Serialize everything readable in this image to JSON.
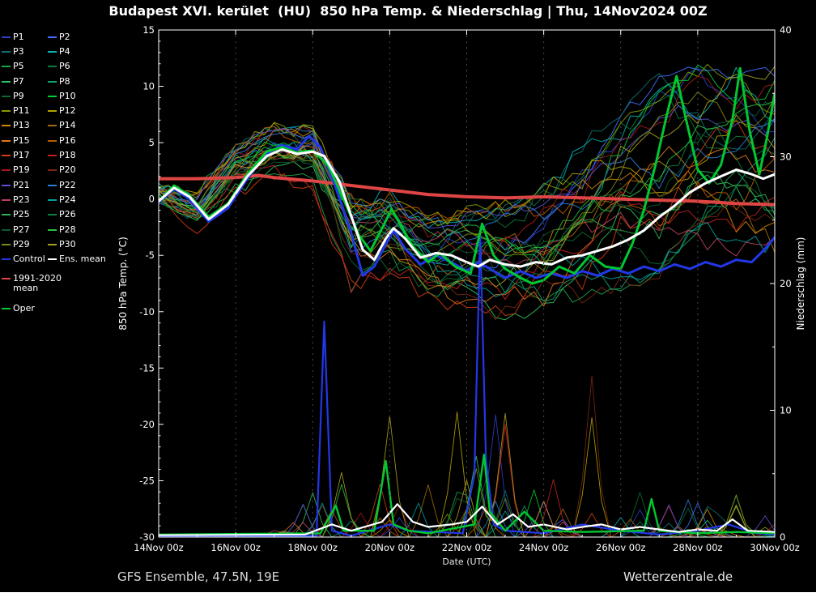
{
  "page": {
    "background": "#000000",
    "edge_strip_color": "#ffffff"
  },
  "header": {
    "title": "Budapest XVI. kerület  (HU)  850 hPa Temp. & Niederschlag | Thu, 14Nov2024 00Z"
  },
  "footer": {
    "left": "GFS Ensemble, 47.5N, 19E",
    "right": "Wetterzentrale.de"
  },
  "legend": {
    "members": [
      {
        "label": "P1",
        "color": "#2a3fd0"
      },
      {
        "label": "P2",
        "color": "#3f6fff"
      },
      {
        "label": "P3",
        "color": "#0e7070"
      },
      {
        "label": "P4",
        "color": "#00b2b2"
      },
      {
        "label": "P5",
        "color": "#19a34a"
      },
      {
        "label": "P6",
        "color": "#0c7a3c"
      },
      {
        "label": "P7",
        "color": "#2fc05f"
      },
      {
        "label": "P8",
        "color": "#0fa076"
      },
      {
        "label": "P9",
        "color": "#0b6b2f"
      },
      {
        "label": "P10",
        "color": "#00d22d"
      },
      {
        "label": "P11",
        "color": "#8a9a00"
      },
      {
        "label": "P12",
        "color": "#b5a300"
      },
      {
        "label": "P13",
        "color": "#d08a00"
      },
      {
        "label": "P14",
        "color": "#a86a10"
      },
      {
        "label": "P15",
        "color": "#e07818"
      },
      {
        "label": "P16",
        "color": "#bf5a00"
      },
      {
        "label": "P17",
        "color": "#d43d10"
      },
      {
        "label": "P18",
        "color": "#c42020"
      },
      {
        "label": "P19",
        "color": "#a81818"
      },
      {
        "label": "P20",
        "color": "#7a2810"
      },
      {
        "label": "P21",
        "color": "#5a4fd0"
      },
      {
        "label": "P22",
        "color": "#2a7fd4"
      },
      {
        "label": "P23",
        "color": "#c04060"
      },
      {
        "label": "P24",
        "color": "#00a0a0"
      },
      {
        "label": "P25",
        "color": "#30b050"
      },
      {
        "label": "P26",
        "color": "#108040"
      },
      {
        "label": "P27",
        "color": "#0a5a30"
      },
      {
        "label": "P28",
        "color": "#28c040"
      },
      {
        "label": "P29",
        "color": "#7a8a10"
      },
      {
        "label": "P30",
        "color": "#aaa020"
      }
    ],
    "control": {
      "label": "Control",
      "color": "#2238e8"
    },
    "ens_mean": {
      "label": "Ens. mean",
      "color": "#ffffff"
    },
    "climate": {
      "line1": "1991-2020",
      "line2": "mean",
      "color": "#e04545"
    },
    "oper": {
      "label": "Oper",
      "color": "#00c832"
    }
  },
  "chart_data": {
    "type": "line",
    "title": "Budapest XVI. kerület  (HU)  850 hPa Temp. & Niederschlag | Thu, 14Nov2024 00Z",
    "xlabel": "Date (UTC)",
    "ylabel_left": "850 hPa Temp. (°C)",
    "ylabel_right": "Niederschlag (mm)",
    "x_range_days": [
      0,
      16
    ],
    "x_tick_days": [
      0,
      2,
      4,
      6,
      8,
      10,
      12,
      14,
      16
    ],
    "x_tick_labels": [
      "14Nov 00z",
      "16Nov 00z",
      "18Nov 00z",
      "20Nov 00z",
      "22Nov 00z",
      "24Nov 00z",
      "26Nov 00z",
      "28Nov 00z",
      "30Nov 00z"
    ],
    "y_left": {
      "min": -30,
      "max": 15,
      "ticks": [
        15,
        10,
        5,
        0,
        -5,
        -10,
        -15,
        -20,
        -25,
        -30
      ]
    },
    "y_right": {
      "min": 0,
      "max": 40,
      "ticks": [
        0,
        10,
        20,
        30,
        40
      ]
    },
    "grid": "vertical-dotted",
    "legend_position": "left",
    "series": {
      "ens_mean_temp": {
        "name": "Ens. mean",
        "color": "#ffffff",
        "width": 3,
        "points": [
          [
            0,
            -0.2
          ],
          [
            0.4,
            1
          ],
          [
            0.8,
            0.2
          ],
          [
            1.3,
            -1.8
          ],
          [
            1.8,
            -0.5
          ],
          [
            2.3,
            2
          ],
          [
            2.8,
            3.8
          ],
          [
            3.2,
            4.4
          ],
          [
            3.6,
            4
          ],
          [
            4,
            4.2
          ],
          [
            4.3,
            3.8
          ],
          [
            4.7,
            1.5
          ],
          [
            5,
            -1.5
          ],
          [
            5.3,
            -4.5
          ],
          [
            5.6,
            -5.4
          ],
          [
            5.9,
            -3.5
          ],
          [
            6.1,
            -2.6
          ],
          [
            6.4,
            -3.5
          ],
          [
            6.8,
            -5.2
          ],
          [
            7.2,
            -4.8
          ],
          [
            7.6,
            -5
          ],
          [
            8,
            -5.6
          ],
          [
            8.3,
            -6
          ],
          [
            8.6,
            -5.4
          ],
          [
            9,
            -5.8
          ],
          [
            9.4,
            -6
          ],
          [
            9.8,
            -5.6
          ],
          [
            10.2,
            -5.8
          ],
          [
            10.6,
            -5.2
          ],
          [
            11,
            -5
          ],
          [
            11.4,
            -4.6
          ],
          [
            11.8,
            -4.2
          ],
          [
            12.2,
            -3.6
          ],
          [
            12.6,
            -2.8
          ],
          [
            13,
            -1.6
          ],
          [
            13.4,
            -0.6
          ],
          [
            13.8,
            0.6
          ],
          [
            14.2,
            1.4
          ],
          [
            14.6,
            2
          ],
          [
            15,
            2.6
          ],
          [
            15.4,
            2.2
          ],
          [
            15.7,
            1.8
          ],
          [
            16,
            2.2
          ]
        ]
      },
      "climate_mean_temp": {
        "name": "1991-2020 mean",
        "color": "#e04545",
        "width": 4,
        "points": [
          [
            0,
            1.8
          ],
          [
            1,
            1.8
          ],
          [
            2,
            1.9
          ],
          [
            2.6,
            2.1
          ],
          [
            3,
            1.9
          ],
          [
            4,
            1.6
          ],
          [
            5,
            1.2
          ],
          [
            6,
            0.8
          ],
          [
            7,
            0.4
          ],
          [
            8,
            0.2
          ],
          [
            9,
            0.1
          ],
          [
            10,
            0.2
          ],
          [
            11,
            0.1
          ],
          [
            12,
            0
          ],
          [
            13,
            -0.1
          ],
          [
            14,
            -0.2
          ],
          [
            15,
            -0.4
          ],
          [
            16,
            -0.5
          ]
        ]
      },
      "control_temp": {
        "name": "Control",
        "color": "#2238e8",
        "width": 3,
        "points": [
          [
            0,
            -0.3
          ],
          [
            0.4,
            0.9
          ],
          [
            0.8,
            0
          ],
          [
            1.3,
            -2
          ],
          [
            1.8,
            -0.8
          ],
          [
            2.3,
            1.8
          ],
          [
            2.8,
            4
          ],
          [
            3.2,
            4.8
          ],
          [
            3.6,
            4.4
          ],
          [
            3.9,
            5.6
          ],
          [
            4.2,
            4.6
          ],
          [
            4.6,
            1
          ],
          [
            5,
            -3
          ],
          [
            5.3,
            -6.8
          ],
          [
            5.6,
            -6
          ],
          [
            5.9,
            -4
          ],
          [
            6.1,
            -2.8
          ],
          [
            6.4,
            -4.4
          ],
          [
            6.8,
            -5.8
          ],
          [
            7.2,
            -5
          ],
          [
            7.6,
            -5.6
          ],
          [
            8,
            -6.4
          ],
          [
            8.3,
            -5.6
          ],
          [
            8.6,
            -6.2
          ],
          [
            9,
            -7
          ],
          [
            9.4,
            -6.4
          ],
          [
            9.8,
            -7
          ],
          [
            10.2,
            -6.6
          ],
          [
            10.6,
            -7
          ],
          [
            11,
            -6.4
          ],
          [
            11.4,
            -6.8
          ],
          [
            11.8,
            -6.2
          ],
          [
            12.2,
            -6.6
          ],
          [
            12.6,
            -6
          ],
          [
            13,
            -6.4
          ],
          [
            13.4,
            -5.8
          ],
          [
            13.8,
            -6.2
          ],
          [
            14.2,
            -5.6
          ],
          [
            14.6,
            -6
          ],
          [
            15,
            -5.4
          ],
          [
            15.4,
            -5.6
          ],
          [
            15.7,
            -4.6
          ],
          [
            16,
            -3.4
          ]
        ]
      },
      "oper_temp": {
        "name": "Oper",
        "color": "#00c832",
        "width": 3,
        "points": [
          [
            0,
            -0.2
          ],
          [
            0.4,
            1.2
          ],
          [
            0.8,
            0.3
          ],
          [
            1.3,
            -1.6
          ],
          [
            1.8,
            -0.4
          ],
          [
            2.3,
            2.2
          ],
          [
            2.8,
            4.2
          ],
          [
            3.2,
            4.6
          ],
          [
            3.6,
            4.1
          ],
          [
            4,
            4.3
          ],
          [
            4.4,
            3
          ],
          [
            4.8,
            0
          ],
          [
            5.2,
            -3.2
          ],
          [
            5.5,
            -4.6
          ],
          [
            5.8,
            -2.6
          ],
          [
            6.05,
            -0.9
          ],
          [
            6.3,
            -2.4
          ],
          [
            6.6,
            -4.2
          ],
          [
            7,
            -5.6
          ],
          [
            7.3,
            -4.8
          ],
          [
            7.7,
            -6
          ],
          [
            8.1,
            -6.6
          ],
          [
            8.4,
            -2.2
          ],
          [
            8.7,
            -5
          ],
          [
            9,
            -6.2
          ],
          [
            9.4,
            -7
          ],
          [
            9.7,
            -7.5
          ],
          [
            10,
            -7.2
          ],
          [
            10.4,
            -6
          ],
          [
            10.8,
            -6.6
          ],
          [
            11.2,
            -5
          ],
          [
            11.6,
            -6
          ],
          [
            12,
            -6.2
          ],
          [
            12.3,
            -4
          ],
          [
            12.6,
            -1
          ],
          [
            12.9,
            3
          ],
          [
            13.2,
            7.5
          ],
          [
            13.45,
            10.9
          ],
          [
            13.7,
            7
          ],
          [
            14,
            2.6
          ],
          [
            14.3,
            1.4
          ],
          [
            14.6,
            3
          ],
          [
            14.9,
            7
          ],
          [
            15.1,
            11.6
          ],
          [
            15.35,
            6
          ],
          [
            15.6,
            2.2
          ],
          [
            15.8,
            5.5
          ],
          [
            16,
            9.4
          ]
        ]
      },
      "ens_mean_precip": {
        "name": "Ens. mean precip",
        "color": "#ffffff",
        "width": 2.2,
        "points": [
          [
            0,
            0.15
          ],
          [
            3.8,
            0.2
          ],
          [
            4.5,
            1
          ],
          [
            5,
            0.5
          ],
          [
            5.8,
            1.2
          ],
          [
            6.2,
            2.6
          ],
          [
            6.6,
            1.2
          ],
          [
            7,
            0.8
          ],
          [
            7.6,
            1
          ],
          [
            8,
            1.2
          ],
          [
            8.4,
            2.4
          ],
          [
            8.8,
            1
          ],
          [
            9.2,
            1.8
          ],
          [
            9.6,
            0.8
          ],
          [
            10,
            1
          ],
          [
            10.6,
            0.6
          ],
          [
            11,
            0.8
          ],
          [
            11.5,
            1
          ],
          [
            12,
            0.6
          ],
          [
            12.5,
            0.8
          ],
          [
            13,
            0.6
          ],
          [
            13.5,
            0.4
          ],
          [
            14,
            0.6
          ],
          [
            14.5,
            0.5
          ],
          [
            14.9,
            1.4
          ],
          [
            15.3,
            0.5
          ],
          [
            16,
            0.4
          ]
        ]
      },
      "control_precip": {
        "name": "Control precip",
        "color": "#2238e8",
        "width": 2.2,
        "points": [
          [
            0,
            0.1
          ],
          [
            4.1,
            0.1
          ],
          [
            4.3,
            17
          ],
          [
            4.5,
            0.5
          ],
          [
            5,
            0.1
          ],
          [
            6,
            1
          ],
          [
            6.5,
            0.5
          ],
          [
            7.9,
            0.3
          ],
          [
            8.2,
            5
          ],
          [
            8.35,
            24
          ],
          [
            8.5,
            6
          ],
          [
            8.7,
            1
          ],
          [
            9,
            0.5
          ],
          [
            10,
            0.3
          ],
          [
            11,
            1
          ],
          [
            12,
            0.5
          ],
          [
            13,
            0.2
          ],
          [
            14,
            0.5
          ],
          [
            14.8,
            1
          ],
          [
            15.5,
            0.3
          ],
          [
            16,
            0.2
          ]
        ]
      },
      "oper_precip": {
        "name": "Oper precip",
        "color": "#00c832",
        "width": 2.4,
        "points": [
          [
            0,
            0.2
          ],
          [
            4.2,
            0.3
          ],
          [
            4.6,
            2.5
          ],
          [
            4.8,
            0.5
          ],
          [
            5.6,
            0.5
          ],
          [
            5.9,
            6
          ],
          [
            6.1,
            1
          ],
          [
            6.5,
            0.5
          ],
          [
            7,
            0.3
          ],
          [
            8.2,
            1
          ],
          [
            8.45,
            6.5
          ],
          [
            8.6,
            2
          ],
          [
            9,
            0.5
          ],
          [
            9.5,
            2
          ],
          [
            10,
            0.5
          ],
          [
            11,
            0.4
          ],
          [
            12.6,
            0.5
          ],
          [
            12.8,
            3
          ],
          [
            13,
            0.5
          ],
          [
            14,
            0.3
          ],
          [
            15,
            0.4
          ],
          [
            16,
            0.3
          ]
        ]
      }
    },
    "members": {
      "count": 30,
      "temp_envelope": {
        "days": [
          0,
          1,
          2,
          3,
          4,
          5,
          6,
          7,
          8,
          9,
          10,
          11,
          12,
          13,
          14,
          15,
          16
        ],
        "lo": [
          -0.5,
          -3,
          0.5,
          2,
          1,
          -8,
          -6.5,
          -9,
          -10,
          -10.5,
          -10,
          -9,
          -8,
          -7,
          -5.5,
          -5,
          -5
        ],
        "hi": [
          1.5,
          0.5,
          5,
          6.5,
          6,
          0,
          0.5,
          -1.5,
          -1,
          -0.5,
          1,
          5,
          8,
          11,
          12,
          12,
          12
        ]
      },
      "precip_max_mm": [
        0,
        0,
        0,
        1,
        18,
        10,
        14,
        6,
        24,
        16,
        8,
        16,
        12,
        6,
        4,
        4,
        2
      ]
    }
  }
}
